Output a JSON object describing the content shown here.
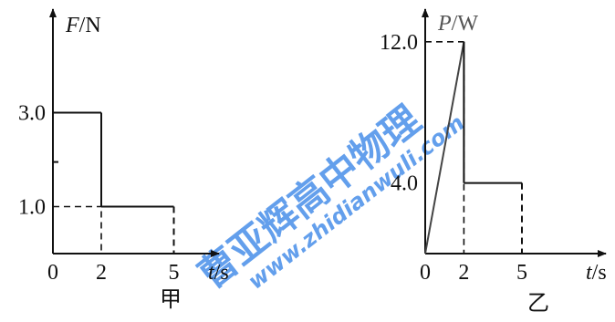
{
  "chart_data": [
    {
      "type": "line",
      "panel_label": "甲",
      "ylabel": {
        "symbol": "F",
        "unit": "/N"
      },
      "xlabel": {
        "symbol": "t",
        "unit": "/s"
      },
      "x_ticks": [
        "0",
        "2",
        "5"
      ],
      "y_ticks": [
        "3.0",
        "1.0"
      ],
      "xlim": [
        0,
        7.3
      ],
      "ylim": [
        0,
        3.75
      ],
      "series": [
        {
          "x": [
            0,
            2,
            2,
            5,
            5
          ],
          "y": [
            3.0,
            3.0,
            1.0,
            1.0,
            0
          ]
        }
      ],
      "guides": [
        {
          "from": [
            2,
            3.0
          ],
          "to": [
            2,
            0
          ]
        },
        {
          "from": [
            0,
            1.0
          ],
          "to": [
            2,
            1.0
          ]
        },
        {
          "from": [
            5,
            1.0
          ],
          "to": [
            5,
            0
          ]
        }
      ]
    },
    {
      "type": "line",
      "panel_label": "乙",
      "ylabel": {
        "symbol": "P",
        "unit": "/W"
      },
      "xlabel": {
        "symbol": "t",
        "unit": "/s"
      },
      "x_ticks": [
        "0",
        "2",
        "5"
      ],
      "y_ticks": [
        "12.0",
        "4.0"
      ],
      "xlim": [
        0,
        9.5
      ],
      "ylim": [
        0,
        15.6
      ],
      "series": [
        {
          "x": [
            0,
            2,
            2,
            5,
            5
          ],
          "y": [
            0,
            12.0,
            4.0,
            4.0,
            0
          ]
        }
      ],
      "guides": [
        {
          "from": [
            0,
            12.0
          ],
          "to": [
            2,
            12.0
          ]
        },
        {
          "from": [
            2,
            12.0
          ],
          "to": [
            2,
            0
          ]
        },
        {
          "from": [
            5,
            4.0
          ],
          "to": [
            5,
            0
          ]
        }
      ]
    }
  ],
  "watermark": {
    "text": "曹亚辉高中物理",
    "url": "www.zhidianwuli.com",
    "color": "#2f7fe6"
  }
}
